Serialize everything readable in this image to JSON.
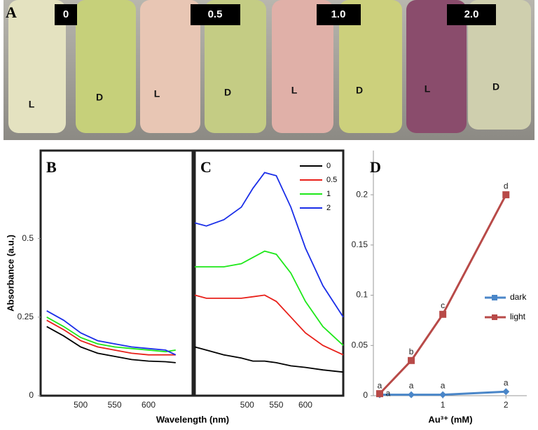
{
  "photo": {
    "panel": "A",
    "concentrations": [
      "0",
      "0.5",
      "1.0",
      "2.0"
    ],
    "vial_labels": [
      "L",
      "D",
      "L",
      "D",
      "L",
      "D",
      "L",
      "D"
    ]
  },
  "chart_data": [
    {
      "type": "line",
      "title": "B",
      "y_label": "Absorbance (a.u.)",
      "x_label": "Wavelength (nm)",
      "x": [
        450,
        475,
        500,
        525,
        550,
        575,
        600,
        625,
        640
      ],
      "xlim": [
        441,
        665
      ],
      "xticks": [
        500,
        550,
        600
      ],
      "ylim": [
        0,
        0.78
      ],
      "yticks": [
        0,
        0.25,
        0.5
      ],
      "series": [
        {
          "name": "0",
          "color": "#000000",
          "values": [
            0.22,
            0.19,
            0.155,
            0.135,
            0.125,
            0.115,
            0.11,
            0.108,
            0.105
          ]
        },
        {
          "name": "0.5",
          "color": "#e8201a",
          "values": [
            0.24,
            0.21,
            0.175,
            0.155,
            0.145,
            0.135,
            0.13,
            0.13,
            0.13
          ]
        },
        {
          "name": "1",
          "color": "#1ee81a",
          "values": [
            0.25,
            0.22,
            0.185,
            0.165,
            0.155,
            0.15,
            0.145,
            0.14,
            0.145
          ]
        },
        {
          "name": "2",
          "color": "#1a2ee8",
          "values": [
            0.27,
            0.24,
            0.2,
            0.175,
            0.165,
            0.155,
            0.15,
            0.145,
            0.13
          ]
        }
      ]
    },
    {
      "type": "line",
      "title": "C",
      "legend": "upper right",
      "x": [
        410,
        430,
        460,
        490,
        510,
        530,
        550,
        575,
        600,
        630,
        665
      ],
      "xlim": [
        410,
        665
      ],
      "xticks": [
        500,
        550,
        600
      ],
      "ylim": [
        0,
        0.78
      ],
      "series": [
        {
          "name": "0",
          "color": "#000000",
          "values": [
            0.155,
            0.145,
            0.13,
            0.12,
            0.11,
            0.11,
            0.105,
            0.095,
            0.09,
            0.082,
            0.075
          ]
        },
        {
          "name": "0.5",
          "color": "#e8201a",
          "values": [
            0.32,
            0.31,
            0.31,
            0.31,
            0.315,
            0.32,
            0.3,
            0.25,
            0.2,
            0.16,
            0.13
          ]
        },
        {
          "name": "1",
          "color": "#1ee81a",
          "values": [
            0.41,
            0.41,
            0.41,
            0.42,
            0.44,
            0.46,
            0.45,
            0.39,
            0.3,
            0.22,
            0.16
          ]
        },
        {
          "name": "2",
          "color": "#1a2ee8",
          "values": [
            0.55,
            0.54,
            0.56,
            0.6,
            0.66,
            0.71,
            0.7,
            0.6,
            0.47,
            0.35,
            0.25
          ]
        }
      ]
    },
    {
      "type": "marker_line",
      "title": "D",
      "x_label": "Au³⁺ (mM)",
      "legend": "right",
      "x": [
        0,
        0.5,
        1,
        2
      ],
      "xlim": [
        -0.1,
        2.33
      ],
      "xticks": [
        1,
        2
      ],
      "ylim": [
        0,
        0.244
      ],
      "yticks": [
        0,
        0.05,
        0.1,
        0.15,
        0.2
      ],
      "series": [
        {
          "name": "dark",
          "color": "#4a86c8",
          "marker": "diamond",
          "values": [
            0.001,
            0.001,
            0.001,
            0.004
          ],
          "point_labels": [
            "a",
            "a",
            "a",
            "a"
          ]
        },
        {
          "name": "light",
          "color": "#b84a48",
          "marker": "square",
          "values": [
            0.002,
            0.035,
            0.081,
            0.2
          ],
          "point_labels": [
            "a",
            "b",
            "c",
            "d"
          ]
        }
      ]
    }
  ]
}
